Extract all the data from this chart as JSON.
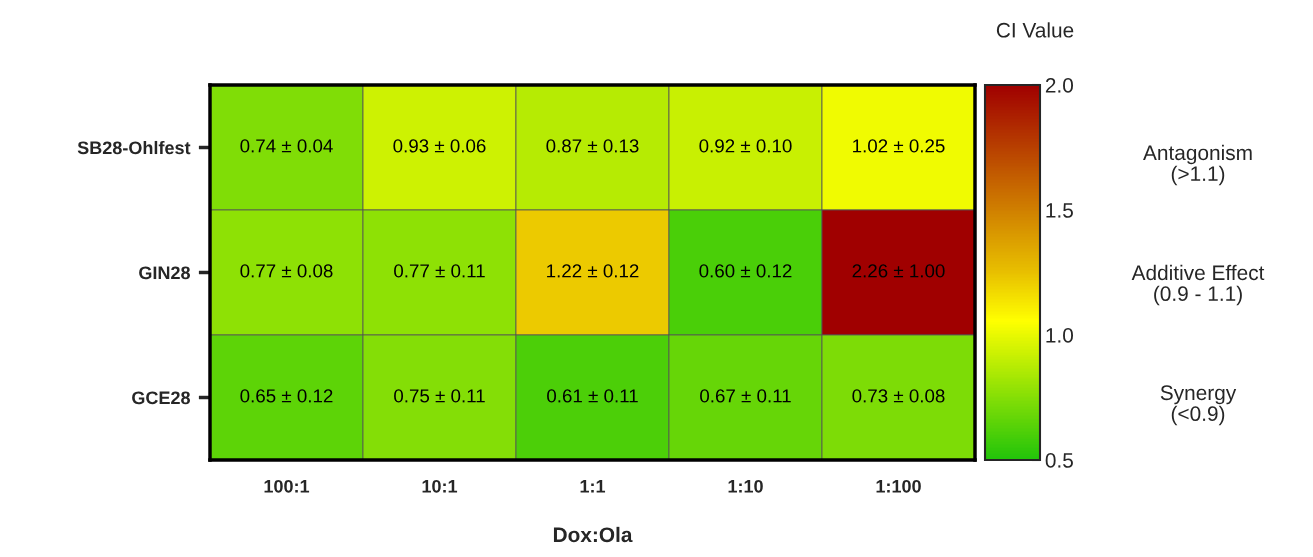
{
  "chart_data": {
    "type": "heatmap",
    "xlabel": "Dox:Ola",
    "clabel": "CI Value",
    "categories": [
      "100:1",
      "10:1",
      "1:1",
      "1:10",
      "1:100"
    ],
    "y_categories": [
      "SB28-Ohlfest",
      "GIN28",
      "GCE28"
    ],
    "cells": [
      [
        0.74,
        0.93,
        0.87,
        0.92,
        1.02
      ],
      [
        0.77,
        0.77,
        1.22,
        0.6,
        2.26
      ],
      [
        0.65,
        0.75,
        0.61,
        0.67,
        0.73
      ]
    ],
    "cell_labels": [
      [
        "0.74 ± 0.04",
        "0.93 ± 0.06",
        "0.87 ± 0.13",
        "0.92 ± 0.10",
        "1.02 ± 0.25"
      ],
      [
        "0.77 ± 0.08",
        "0.77 ± 0.11",
        "1.22 ± 0.12",
        "0.60 ± 0.12",
        "2.26 ± 1.00"
      ],
      [
        "0.65 ± 0.12",
        "0.75 ± 0.11",
        "0.61 ± 0.11",
        "0.67 ± 0.11",
        "0.73 ± 0.08"
      ]
    ],
    "clim": [
      0.5,
      2.0
    ],
    "cticks": [
      0.5,
      {
        "value": 1,
        "label": "1.0"
      },
      1.5,
      {
        "value": 2,
        "label": "2.0"
      }
    ],
    "annotations": [
      "Antagonism\n(>1.1)",
      "Additive Effect\n(0.9 - 1.1)",
      "Synergy\n(<0.9)"
    ]
  }
}
